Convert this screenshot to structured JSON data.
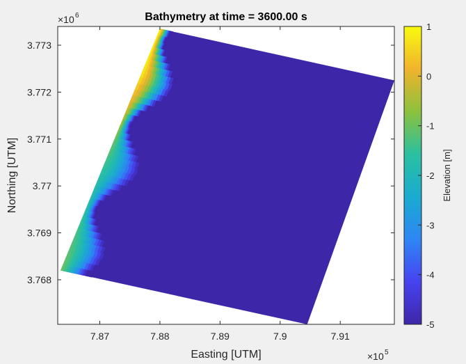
{
  "chart_data": {
    "type": "heatmap",
    "title": "Bathymetry at time = 3600.00 s",
    "xlabel": "Easting [UTM]",
    "ylabel": "Northing [UTM]",
    "x_exponent_label": "×10",
    "x_exponent_power": "5",
    "y_exponent_label": "×10",
    "y_exponent_power": "6",
    "xlim": [
      786300,
      791900
    ],
    "ylim": [
      3767050,
      3773400
    ],
    "x_ticks": [
      {
        "value": 787000,
        "label": "7.87"
      },
      {
        "value": 788000,
        "label": "7.88"
      },
      {
        "value": 789000,
        "label": "7.89"
      },
      {
        "value": 790000,
        "label": "7.9"
      },
      {
        "value": 791000,
        "label": "7.91"
      }
    ],
    "y_ticks": [
      {
        "value": 3768000,
        "label": "3.768"
      },
      {
        "value": 3769000,
        "label": "3.769"
      },
      {
        "value": 3770000,
        "label": "3.77"
      },
      {
        "value": 3771000,
        "label": "3.771"
      },
      {
        "value": 3772000,
        "label": "3.772"
      },
      {
        "value": 3773000,
        "label": "3.773"
      }
    ],
    "domain_corners": {
      "southwest": [
        786350,
        3768200
      ],
      "northwest": [
        788000,
        3773350
      ],
      "northeast": [
        791900,
        3772250
      ],
      "southeast": [
        790450,
        3767050
      ]
    },
    "shoreline_profile": [
      {
        "northing": 3768200,
        "elev_offshore_start": -1.0
      },
      {
        "northing": 3769000,
        "elev_offshore_start": -1.3
      },
      {
        "northing": 3770000,
        "elev_offshore_start": -1.8
      },
      {
        "northing": 3771000,
        "elev_offshore_start": -1.0
      },
      {
        "northing": 3771700,
        "elev_offshore_start": 0.0
      },
      {
        "northing": 3772400,
        "elev_offshore_start": 0.8
      },
      {
        "northing": 3773300,
        "elev_offshore_start": 1.0
      }
    ],
    "deep_elevation": -5,
    "colorbar": {
      "label": "Elevation [m]",
      "clim": [
        -5,
        1
      ],
      "ticks": [
        {
          "value": 1,
          "label": "1"
        },
        {
          "value": 0,
          "label": "0"
        },
        {
          "value": -1,
          "label": "-1"
        },
        {
          "value": -2,
          "label": "-2"
        },
        {
          "value": -3,
          "label": "-3"
        },
        {
          "value": -4,
          "label": "-4"
        },
        {
          "value": -5,
          "label": "-5"
        }
      ],
      "colors": [
        "#3e26a8",
        "#4743f0",
        "#2e86f5",
        "#1aabcf",
        "#2bc0a0",
        "#8cc13d",
        "#f0b32d",
        "#f9fb0e"
      ]
    },
    "grid": false
  }
}
